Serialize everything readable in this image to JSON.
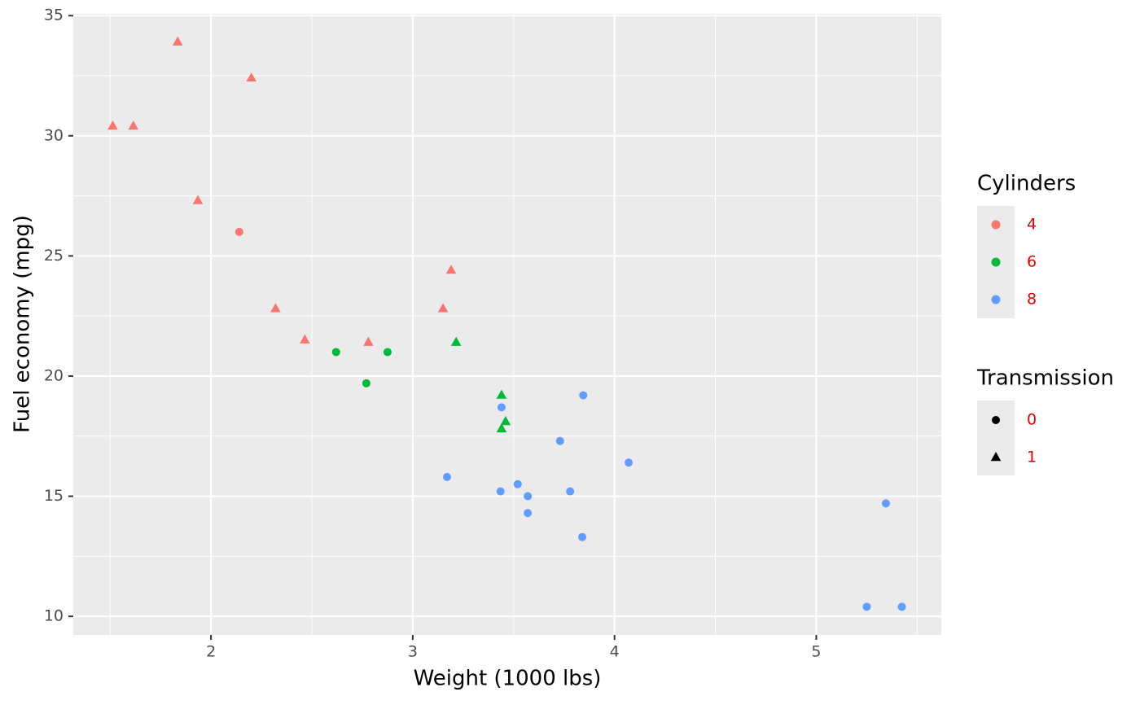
{
  "chart_data": {
    "type": "scatter",
    "x_label": "Weight (1000 lbs)",
    "y_label": "Fuel economy (mpg)",
    "xlim": [
      1.3175,
      5.6196
    ],
    "ylim": [
      9.225,
      35.075
    ],
    "xticks": [
      2,
      3,
      4,
      5
    ],
    "yticks": [
      10,
      15,
      20,
      25,
      30,
      35
    ],
    "grid": true,
    "color_legend_title": "Cylinders",
    "shape_legend": {
      "title": "Transmission",
      "levels": [
        "0",
        "1"
      ],
      "shapes": [
        "circle",
        "triangle"
      ]
    },
    "series": [
      {
        "name": "4",
        "color": "#F8766D",
        "x": [
          2.32,
          3.19,
          3.15,
          2.2,
          1.615,
          1.835,
          2.465,
          1.935,
          2.14,
          1.513,
          2.78
        ],
        "values": [
          22.8,
          24.4,
          22.8,
          32.4,
          30.4,
          33.9,
          21.5,
          27.3,
          26.0,
          30.4,
          21.4
        ],
        "shape": [
          1,
          1,
          1,
          1,
          1,
          1,
          1,
          1,
          0,
          1,
          1
        ]
      },
      {
        "name": "6",
        "color": "#00BA38",
        "x": [
          2.62,
          2.875,
          3.215,
          3.46,
          3.44,
          3.44,
          2.77
        ],
        "values": [
          21.0,
          21.0,
          21.4,
          18.1,
          19.2,
          17.8,
          19.7
        ],
        "shape": [
          0,
          0,
          1,
          1,
          1,
          1,
          0
        ]
      },
      {
        "name": "8",
        "color": "#619CFF",
        "x": [
          3.44,
          3.57,
          4.07,
          3.73,
          3.78,
          5.25,
          5.424,
          5.345,
          3.52,
          3.435,
          3.84,
          3.845,
          3.17,
          3.57
        ],
        "values": [
          18.7,
          14.3,
          16.4,
          17.3,
          15.2,
          10.4,
          10.4,
          14.7,
          15.5,
          15.2,
          13.3,
          19.2,
          15.8,
          15.0
        ],
        "shape": [
          0,
          0,
          0,
          0,
          0,
          0,
          0,
          0,
          0,
          0,
          0,
          0,
          0,
          0
        ]
      }
    ]
  }
}
